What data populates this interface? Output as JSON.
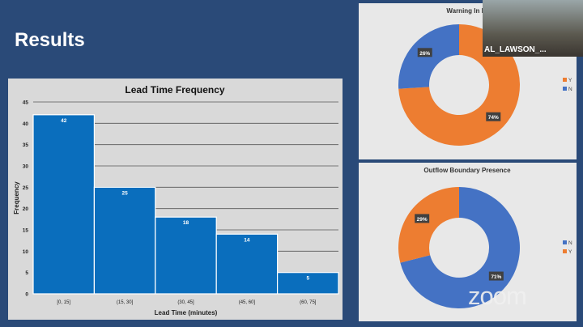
{
  "slide": {
    "title": "Results"
  },
  "chart_data": [
    {
      "type": "bar",
      "title": "Lead Time Frequency",
      "xlabel": "Lead Time (minutes)",
      "ylabel": "Frequency",
      "categories": [
        "[0, 15]",
        "(15, 30]",
        "(30, 45]",
        "(45, 60]",
        "(60, 75]"
      ],
      "values": [
        42,
        25,
        18,
        14,
        5
      ],
      "ylim": [
        0,
        45
      ],
      "yticks": [
        0,
        5,
        10,
        15,
        20,
        25,
        30,
        35,
        40,
        45
      ],
      "grid": true,
      "color": "#0a6ebd"
    },
    {
      "type": "pie",
      "title": "Warning In Ef",
      "labels": [
        "Y",
        "N"
      ],
      "values": [
        74,
        26
      ],
      "value_labels": [
        "74%",
        "26%"
      ],
      "colors": [
        "#ed7d31",
        "#4472c4"
      ],
      "legend": "right"
    },
    {
      "type": "pie",
      "title": "Outflow Boundary Presence",
      "labels": [
        "N",
        "Y"
      ],
      "values": [
        71,
        29
      ],
      "value_labels": [
        "71%",
        "29%"
      ],
      "colors": [
        "#4472c4",
        "#ed7d31"
      ],
      "legend": "right"
    }
  ],
  "video": {
    "participant": "AL_LAWSON_..."
  },
  "zoom": {
    "logo": "zoom"
  }
}
